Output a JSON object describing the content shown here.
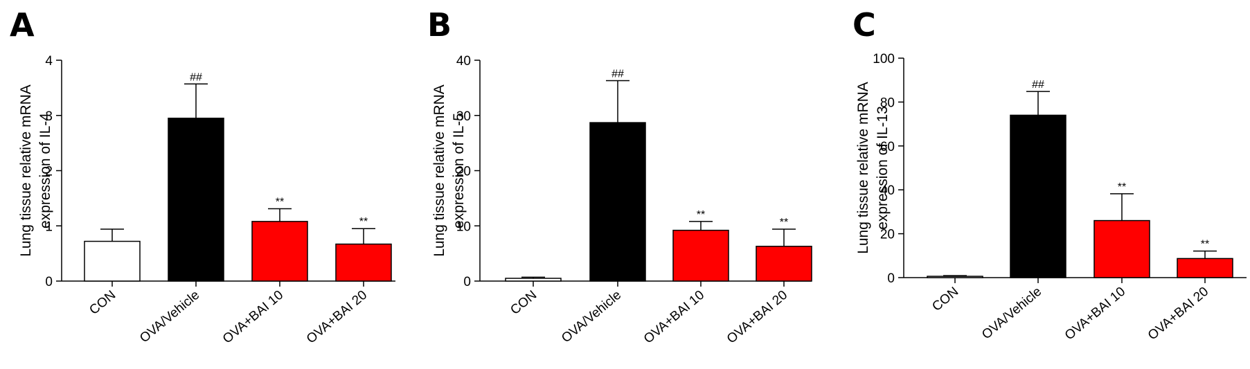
{
  "chart_data": [
    {
      "panel": "A",
      "type": "bar",
      "ylabel": [
        "Lung tissue relative mRNA",
        "expression of IL-4"
      ],
      "categories": [
        "CON",
        "OVA/Vehicle",
        "OVA+BAI 10",
        "OVA+BAI 20"
      ],
      "values": [
        0.72,
        2.95,
        1.08,
        0.67
      ],
      "errors": [
        0.22,
        0.62,
        0.23,
        0.28
      ],
      "significance": [
        "",
        "##",
        "**",
        "**"
      ],
      "colors": [
        "#ffffff",
        "#000000",
        "#ff0000",
        "#ff0000"
      ],
      "ylim": [
        0,
        4
      ],
      "yticks": [
        0,
        1,
        2,
        3,
        4
      ]
    },
    {
      "panel": "B",
      "type": "bar",
      "ylabel": [
        "Lung tissue relative mRNA",
        "expression of IL-5"
      ],
      "categories": [
        "CON",
        "OVA/Vehicle",
        "OVA+BAI 10",
        "OVA+BAI 20"
      ],
      "values": [
        0.5,
        28.7,
        9.2,
        6.3
      ],
      "errors": [
        0.2,
        7.6,
        1.6,
        3.1
      ],
      "significance": [
        "",
        "##",
        "**",
        "**"
      ],
      "colors": [
        "#ffffff",
        "#000000",
        "#ff0000",
        "#ff0000"
      ],
      "ylim": [
        0,
        40
      ],
      "yticks": [
        0,
        10,
        20,
        30,
        40
      ]
    },
    {
      "panel": "C",
      "type": "bar",
      "ylabel": [
        "Lung tissue relative mRNA",
        "expression of IL-13"
      ],
      "categories": [
        "CON",
        "OVA/Vehicle",
        "OVA+BAI 10",
        "OVA+BAI 20"
      ],
      "values": [
        0.6,
        74,
        26,
        8.7
      ],
      "errors": [
        0.3,
        10.8,
        12.2,
        3.4
      ],
      "significance": [
        "",
        "##",
        "**",
        "**"
      ],
      "colors": [
        "#ffffff",
        "#000000",
        "#ff0000",
        "#ff0000"
      ],
      "ylim": [
        0,
        100
      ],
      "yticks": [
        0,
        20,
        40,
        60,
        80,
        100
      ]
    }
  ]
}
